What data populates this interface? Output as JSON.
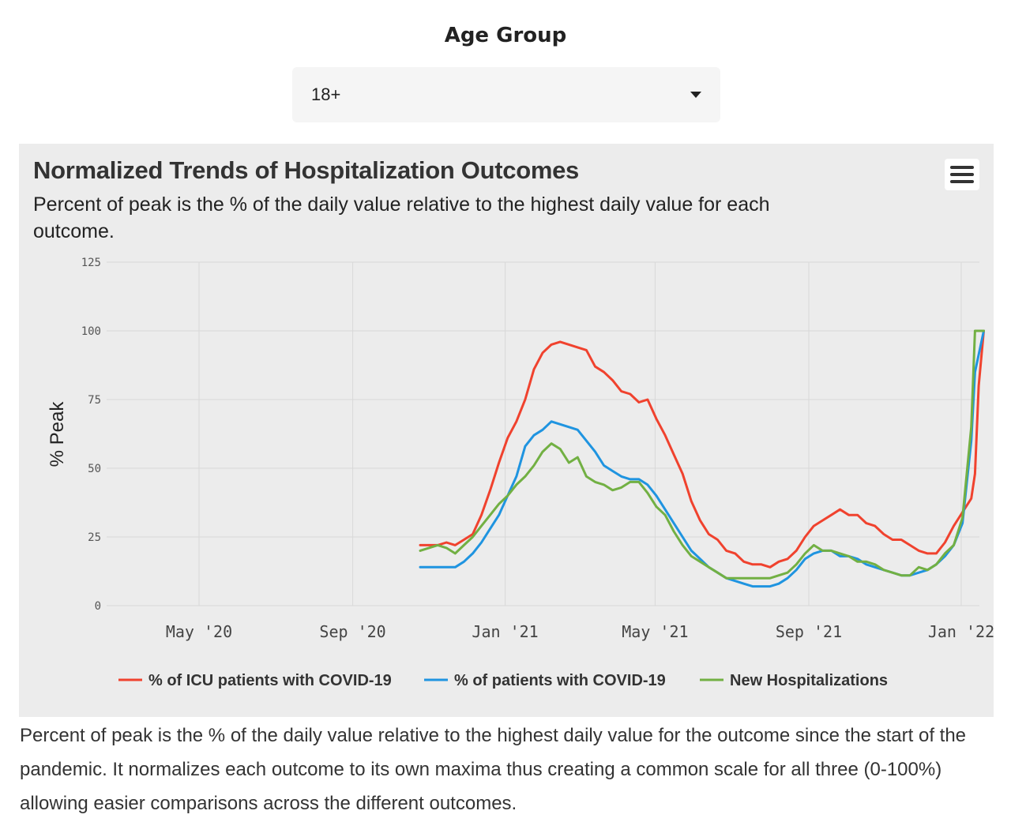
{
  "filter": {
    "label": "Age Group",
    "selected": "18+"
  },
  "chart": {
    "title": "Normalized Trends of Hospitalization Outcomes",
    "subtitle": "Percent of peak is the % of the daily value relative to the highest daily value for each outcome."
  },
  "footnote": "Percent of peak is the % of the daily value relative to the highest daily value for the outcome since the start of the pandemic. It normalizes each outcome to its own maxima thus creating a common scale for all three (0-100%) allowing easier comparisons across the different outcomes.",
  "chart_data": {
    "type": "line",
    "ylabel": "% Peak",
    "xlabel": "",
    "ylim": [
      0,
      125
    ],
    "yticks": [
      0,
      25,
      50,
      75,
      100,
      125
    ],
    "xlim": [
      "2020-03-01",
      "2022-01-20"
    ],
    "xticks": [
      {
        "date": "2020-05-01",
        "label": "May '20"
      },
      {
        "date": "2020-09-01",
        "label": "Sep '20"
      },
      {
        "date": "2021-01-01",
        "label": "Jan '21"
      },
      {
        "date": "2021-05-01",
        "label": "May '21"
      },
      {
        "date": "2021-09-01",
        "label": "Sep '21"
      },
      {
        "date": "2022-01-01",
        "label": "Jan '22"
      }
    ],
    "grid": true,
    "legend_position": "bottom",
    "series": [
      {
        "name": "% of ICU patients with COVID-19",
        "color": "#f0422e",
        "points": [
          [
            "2020-10-25",
            22
          ],
          [
            "2020-11-08",
            22
          ],
          [
            "2020-11-15",
            23
          ],
          [
            "2020-11-22",
            22
          ],
          [
            "2020-11-29",
            24
          ],
          [
            "2020-12-06",
            26
          ],
          [
            "2020-12-13",
            33
          ],
          [
            "2020-12-20",
            42
          ],
          [
            "2020-12-27",
            52
          ],
          [
            "2021-01-03",
            61
          ],
          [
            "2021-01-10",
            67
          ],
          [
            "2021-01-17",
            75
          ],
          [
            "2021-01-24",
            86
          ],
          [
            "2021-01-31",
            92
          ],
          [
            "2021-02-07",
            95
          ],
          [
            "2021-02-14",
            96
          ],
          [
            "2021-02-21",
            95
          ],
          [
            "2021-02-28",
            94
          ],
          [
            "2021-03-07",
            93
          ],
          [
            "2021-03-14",
            87
          ],
          [
            "2021-03-21",
            85
          ],
          [
            "2021-03-28",
            82
          ],
          [
            "2021-04-04",
            78
          ],
          [
            "2021-04-11",
            77
          ],
          [
            "2021-04-18",
            74
          ],
          [
            "2021-04-25",
            75
          ],
          [
            "2021-05-02",
            68
          ],
          [
            "2021-05-09",
            62
          ],
          [
            "2021-05-16",
            55
          ],
          [
            "2021-05-23",
            48
          ],
          [
            "2021-05-30",
            38
          ],
          [
            "2021-06-06",
            31
          ],
          [
            "2021-06-13",
            26
          ],
          [
            "2021-06-20",
            24
          ],
          [
            "2021-06-27",
            20
          ],
          [
            "2021-07-04",
            19
          ],
          [
            "2021-07-11",
            16
          ],
          [
            "2021-07-18",
            15
          ],
          [
            "2021-07-25",
            15
          ],
          [
            "2021-08-01",
            14
          ],
          [
            "2021-08-08",
            16
          ],
          [
            "2021-08-15",
            17
          ],
          [
            "2021-08-22",
            20
          ],
          [
            "2021-08-29",
            25
          ],
          [
            "2021-09-05",
            29
          ],
          [
            "2021-09-12",
            31
          ],
          [
            "2021-09-19",
            33
          ],
          [
            "2021-09-26",
            35
          ],
          [
            "2021-10-03",
            33
          ],
          [
            "2021-10-10",
            33
          ],
          [
            "2021-10-17",
            30
          ],
          [
            "2021-10-24",
            29
          ],
          [
            "2021-10-31",
            26
          ],
          [
            "2021-11-07",
            24
          ],
          [
            "2021-11-14",
            24
          ],
          [
            "2021-11-21",
            22
          ],
          [
            "2021-11-28",
            20
          ],
          [
            "2021-12-05",
            19
          ],
          [
            "2021-12-12",
            19
          ],
          [
            "2021-12-19",
            23
          ],
          [
            "2021-12-26",
            29
          ],
          [
            "2022-01-02",
            34
          ],
          [
            "2022-01-09",
            39
          ],
          [
            "2022-01-12",
            48
          ],
          [
            "2022-01-15",
            80
          ],
          [
            "2022-01-19",
            100
          ]
        ]
      },
      {
        "name": "% of patients with COVID-19",
        "color": "#1f94e0",
        "points": [
          [
            "2020-10-25",
            14
          ],
          [
            "2020-11-08",
            14
          ],
          [
            "2020-11-15",
            14
          ],
          [
            "2020-11-22",
            14
          ],
          [
            "2020-11-29",
            16
          ],
          [
            "2020-12-06",
            19
          ],
          [
            "2020-12-13",
            23
          ],
          [
            "2020-12-20",
            28
          ],
          [
            "2020-12-27",
            33
          ],
          [
            "2021-01-03",
            40
          ],
          [
            "2021-01-10",
            47
          ],
          [
            "2021-01-17",
            58
          ],
          [
            "2021-01-24",
            62
          ],
          [
            "2021-01-31",
            64
          ],
          [
            "2021-02-07",
            67
          ],
          [
            "2021-02-14",
            66
          ],
          [
            "2021-02-21",
            65
          ],
          [
            "2021-02-28",
            64
          ],
          [
            "2021-03-07",
            60
          ],
          [
            "2021-03-14",
            56
          ],
          [
            "2021-03-21",
            51
          ],
          [
            "2021-03-28",
            49
          ],
          [
            "2021-04-04",
            47
          ],
          [
            "2021-04-11",
            46
          ],
          [
            "2021-04-18",
            46
          ],
          [
            "2021-04-25",
            44
          ],
          [
            "2021-05-02",
            40
          ],
          [
            "2021-05-09",
            35
          ],
          [
            "2021-05-16",
            30
          ],
          [
            "2021-05-23",
            25
          ],
          [
            "2021-05-30",
            20
          ],
          [
            "2021-06-06",
            17
          ],
          [
            "2021-06-13",
            14
          ],
          [
            "2021-06-20",
            12
          ],
          [
            "2021-06-27",
            10
          ],
          [
            "2021-07-04",
            9
          ],
          [
            "2021-07-11",
            8
          ],
          [
            "2021-07-18",
            7
          ],
          [
            "2021-07-25",
            7
          ],
          [
            "2021-08-01",
            7
          ],
          [
            "2021-08-08",
            8
          ],
          [
            "2021-08-15",
            10
          ],
          [
            "2021-08-22",
            13
          ],
          [
            "2021-08-29",
            17
          ],
          [
            "2021-09-05",
            19
          ],
          [
            "2021-09-12",
            20
          ],
          [
            "2021-09-19",
            20
          ],
          [
            "2021-09-26",
            18
          ],
          [
            "2021-10-03",
            18
          ],
          [
            "2021-10-10",
            17
          ],
          [
            "2021-10-17",
            15
          ],
          [
            "2021-10-24",
            14
          ],
          [
            "2021-10-31",
            13
          ],
          [
            "2021-11-07",
            12
          ],
          [
            "2021-11-14",
            11
          ],
          [
            "2021-11-21",
            11
          ],
          [
            "2021-11-28",
            12
          ],
          [
            "2021-12-05",
            13
          ],
          [
            "2021-12-12",
            15
          ],
          [
            "2021-12-19",
            18
          ],
          [
            "2021-12-26",
            22
          ],
          [
            "2022-01-02",
            30
          ],
          [
            "2022-01-09",
            60
          ],
          [
            "2022-01-12",
            85
          ],
          [
            "2022-01-19",
            100
          ]
        ]
      },
      {
        "name": "New Hospitalizations",
        "color": "#72b043",
        "points": [
          [
            "2020-10-25",
            20
          ],
          [
            "2020-11-08",
            22
          ],
          [
            "2020-11-15",
            21
          ],
          [
            "2020-11-22",
            19
          ],
          [
            "2020-11-29",
            22
          ],
          [
            "2020-12-06",
            25
          ],
          [
            "2020-12-13",
            29
          ],
          [
            "2020-12-20",
            33
          ],
          [
            "2020-12-27",
            37
          ],
          [
            "2021-01-03",
            40
          ],
          [
            "2021-01-10",
            44
          ],
          [
            "2021-01-17",
            47
          ],
          [
            "2021-01-24",
            51
          ],
          [
            "2021-01-31",
            56
          ],
          [
            "2021-02-07",
            59
          ],
          [
            "2021-02-14",
            57
          ],
          [
            "2021-02-21",
            52
          ],
          [
            "2021-02-28",
            54
          ],
          [
            "2021-03-07",
            47
          ],
          [
            "2021-03-14",
            45
          ],
          [
            "2021-03-21",
            44
          ],
          [
            "2021-03-28",
            42
          ],
          [
            "2021-04-04",
            43
          ],
          [
            "2021-04-11",
            45
          ],
          [
            "2021-04-18",
            45
          ],
          [
            "2021-04-25",
            41
          ],
          [
            "2021-05-02",
            36
          ],
          [
            "2021-05-09",
            33
          ],
          [
            "2021-05-16",
            27
          ],
          [
            "2021-05-23",
            22
          ],
          [
            "2021-05-30",
            18
          ],
          [
            "2021-06-06",
            16
          ],
          [
            "2021-06-13",
            14
          ],
          [
            "2021-06-20",
            12
          ],
          [
            "2021-06-27",
            10
          ],
          [
            "2021-07-04",
            10
          ],
          [
            "2021-07-11",
            10
          ],
          [
            "2021-07-18",
            10
          ],
          [
            "2021-07-25",
            10
          ],
          [
            "2021-08-01",
            10
          ],
          [
            "2021-08-08",
            11
          ],
          [
            "2021-08-15",
            12
          ],
          [
            "2021-08-22",
            15
          ],
          [
            "2021-08-29",
            19
          ],
          [
            "2021-09-05",
            22
          ],
          [
            "2021-09-12",
            20
          ],
          [
            "2021-09-19",
            20
          ],
          [
            "2021-09-26",
            19
          ],
          [
            "2021-10-03",
            18
          ],
          [
            "2021-10-10",
            16
          ],
          [
            "2021-10-17",
            16
          ],
          [
            "2021-10-24",
            15
          ],
          [
            "2021-10-31",
            13
          ],
          [
            "2021-11-07",
            12
          ],
          [
            "2021-11-14",
            11
          ],
          [
            "2021-11-21",
            11
          ],
          [
            "2021-11-28",
            14
          ],
          [
            "2021-12-05",
            13
          ],
          [
            "2021-12-12",
            15
          ],
          [
            "2021-12-19",
            19
          ],
          [
            "2021-12-26",
            22
          ],
          [
            "2022-01-02",
            32
          ],
          [
            "2022-01-09",
            65
          ],
          [
            "2022-01-12",
            100
          ],
          [
            "2022-01-19",
            100
          ]
        ]
      }
    ]
  }
}
